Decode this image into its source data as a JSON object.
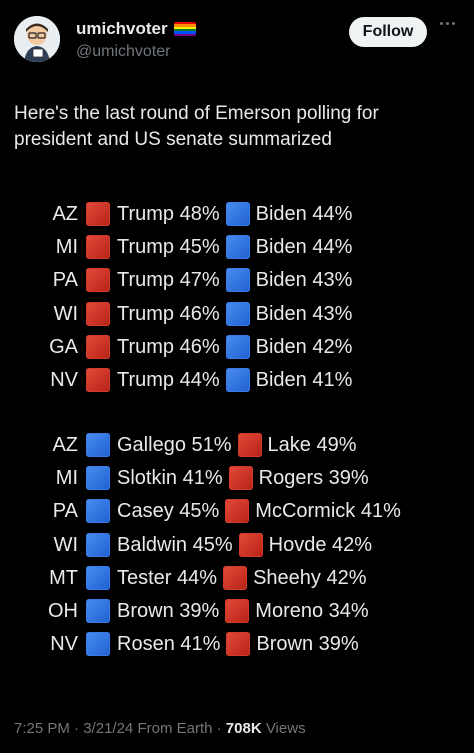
{
  "author": {
    "display_name": "umichvoter",
    "handle": "@umichvoter",
    "flag_colors": [
      "#e40303",
      "#ff8c00",
      "#ffed00",
      "#008026",
      "#004dff",
      "#750787"
    ]
  },
  "follow_label": "Follow",
  "tweet_text": "Here's  the last round of Emerson polling for president and US senate summarized",
  "colors": {
    "red_square": "#d23a2a",
    "blue_square": "#2f6ee0"
  },
  "president": [
    {
      "state": "AZ",
      "left_color": "red",
      "left": "Trump 48%",
      "right_color": "blue",
      "right": "Biden 44%"
    },
    {
      "state": "MI",
      "left_color": "red",
      "left": "Trump 45%",
      "right_color": "blue",
      "right": "Biden 44%"
    },
    {
      "state": "PA",
      "left_color": "red",
      "left": "Trump 47%",
      "right_color": "blue",
      "right": "Biden 43%"
    },
    {
      "state": "WI",
      "left_color": "red",
      "left": "Trump 46%",
      "right_color": "blue",
      "right": "Biden 43%"
    },
    {
      "state": "GA",
      "left_color": "red",
      "left": "Trump 46%",
      "right_color": "blue",
      "right": "Biden 42%"
    },
    {
      "state": "NV",
      "left_color": "red",
      "left": "Trump 44%",
      "right_color": "blue",
      "right": "Biden 41%"
    }
  ],
  "senate": [
    {
      "state": "AZ",
      "left_color": "blue",
      "left": "Gallego 51%",
      "right_color": "red",
      "right": "Lake 49%"
    },
    {
      "state": "MI",
      "left_color": "blue",
      "left": "Slotkin 41%",
      "right_color": "red",
      "right": "Rogers 39%"
    },
    {
      "state": "PA",
      "left_color": "blue",
      "left": "Casey 45%",
      "right_color": "red",
      "right": "McCormick 41%"
    },
    {
      "state": "WI",
      "left_color": "blue",
      "left": "Baldwin 45%",
      "right_color": "red",
      "right": "Hovde 42%"
    },
    {
      "state": "MT",
      "left_color": "blue",
      "left": "Tester 44%",
      "right_color": "red",
      "right": "Sheehy 42%"
    },
    {
      "state": "OH",
      "left_color": "blue",
      "left": "Brown 39%",
      "right_color": "red",
      "right": "Moreno 34%"
    },
    {
      "state": "NV",
      "left_color": "blue",
      "left": "Rosen 41%",
      "right_color": "red",
      "right": "Brown 39%"
    }
  ],
  "meta": {
    "time": "7:25 PM",
    "date": "3/21/24",
    "source": "From Earth",
    "views_count": "708K",
    "views_label": "Views"
  }
}
